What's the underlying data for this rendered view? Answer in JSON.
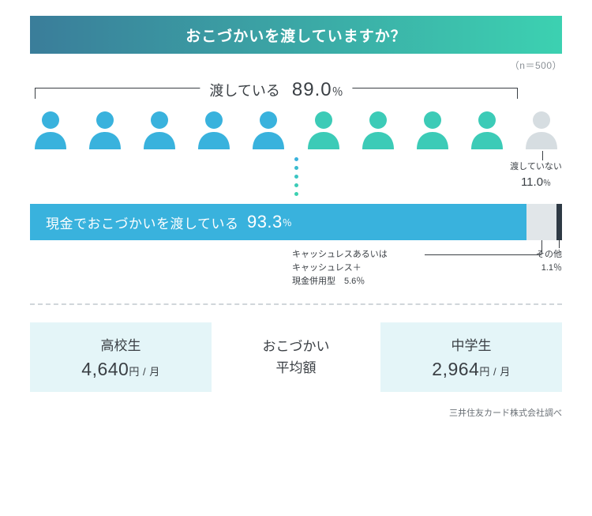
{
  "title": "おこづかいを渡していますか？",
  "sample_size_label": "（n＝500）",
  "header_gradient": {
    "from": "#3a7d9a",
    "to": "#3cd1b1"
  },
  "yes": {
    "label": "渡している",
    "value": "89.0",
    "unit": "％"
  },
  "no": {
    "label": "渡していない",
    "value": "11.0",
    "unit": "％"
  },
  "people": {
    "count": 10,
    "colors": [
      "#39b2dd",
      "#39b2dd",
      "#39b2dd",
      "#39b2dd",
      "#39b2dd",
      "#3ccbb7",
      "#3ccbb7",
      "#3ccbb7",
      "#3ccbb7",
      "#d6dde1"
    ],
    "gradient_dots": [
      "#39b2dd",
      "#3abccf",
      "#3bc5c3",
      "#3ccbb7",
      "#3cd1b1"
    ]
  },
  "bar": {
    "cash": {
      "label": "現金でおこづかいを渡している",
      "value": "93.3",
      "unit": "％",
      "color": "#39b2dd",
      "width_pct": 93.3
    },
    "cashless": {
      "line1": "キャッシュレスあるいは",
      "line2": "キャッシュレス＋",
      "line3": "現金併用型　5.6％",
      "color": "#e1e6e9",
      "width_pct": 5.6
    },
    "other": {
      "label": "その他",
      "value": "1.1％",
      "color": "#2e3a45",
      "width_pct": 1.1
    }
  },
  "average": {
    "center_line1": "おこづかい",
    "center_line2": "平均額",
    "box_bg": "#e4f5f8",
    "left": {
      "group": "高校生",
      "amount": "4,640",
      "suffix": "円 / 月"
    },
    "right": {
      "group": "中学生",
      "amount": "2,964",
      "suffix": "円 / 月"
    }
  },
  "source": "三井住友カード株式会社調べ"
}
